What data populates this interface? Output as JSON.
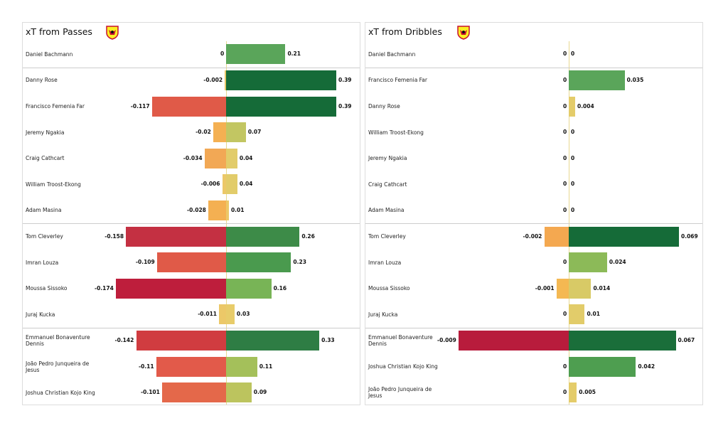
{
  "chart_data": [
    {
      "type": "diverging-bar",
      "title": "xT from Passes",
      "groups": [
        {
          "categories": [
            "Daniel Bachmann"
          ],
          "negative": {
            "values": [
              0
            ],
            "colors": [
              "#f0b050"
            ]
          },
          "positive": {
            "values": [
              0.21
            ],
            "colors": [
              "#5aa55a"
            ]
          }
        },
        {
          "categories": [
            "Danny Rose",
            "Francisco Femenia Far",
            "Jeremy Ngakia",
            "Craig Cathcart",
            "William Troost-Ekong",
            "Adam Masina"
          ],
          "negative": {
            "values": [
              -0.002,
              -0.117,
              -0.02,
              -0.034,
              -0.006,
              -0.028
            ],
            "colors": [
              "#e8c868",
              "#e05a48",
              "#f4b052",
              "#f2a855",
              "#ecc868",
              "#f4b052"
            ]
          },
          "positive": {
            "values": [
              0.39,
              0.39,
              0.07,
              0.04,
              0.04,
              0.01
            ],
            "colors": [
              "#156b38",
              "#156b38",
              "#c2c662",
              "#e2cc6a",
              "#e2cc6a",
              "#ecc868"
            ]
          }
        },
        {
          "categories": [
            "Tom Cleverley",
            "Imran Louza",
            "Moussa Sissoko",
            "Juraj Kucka"
          ],
          "negative": {
            "values": [
              -0.158,
              -0.109,
              -0.174,
              -0.011
            ],
            "colors": [
              "#c43042",
              "#e05a48",
              "#be1e3c",
              "#ecc868"
            ]
          },
          "positive": {
            "values": [
              0.26,
              0.23,
              0.16,
              0.03
            ],
            "colors": [
              "#3d8b48",
              "#4a9a4e",
              "#78b456",
              "#e8cc6a"
            ]
          }
        },
        {
          "categories": [
            "Emmanuel Bonaventure Dennis",
            "João Pedro Junqueira de Jesus",
            "Joshua Christian Kojo King"
          ],
          "negative": {
            "values": [
              -0.142,
              -0.11,
              -0.101
            ],
            "colors": [
              "#d03c40",
              "#e25a4a",
              "#e4684a"
            ]
          },
          "positive": {
            "values": [
              0.33,
              0.11,
              0.09
            ],
            "colors": [
              "#2e7d44",
              "#a4c05a",
              "#bcc45e"
            ]
          }
        }
      ]
    },
    {
      "type": "diverging-bar",
      "title": "xT from Dribbles",
      "groups": [
        {
          "categories": [
            "Daniel Bachmann"
          ],
          "negative": {
            "values": [
              0
            ],
            "colors": [
              "#e8cc6a"
            ]
          },
          "positive": {
            "values": [
              0
            ],
            "colors": [
              "#e8cc6a"
            ]
          }
        },
        {
          "categories": [
            "Francisco Femenia Far",
            "Danny Rose",
            "William Troost-Ekong",
            "Jeremy Ngakia",
            "Craig Cathcart",
            "Adam Masina"
          ],
          "negative": {
            "values": [
              0,
              0,
              0,
              0,
              0,
              0
            ],
            "colors": [
              "#e8cc6a",
              "#e8cc6a",
              "#e8cc6a",
              "#e8cc6a",
              "#e8cc6a",
              "#e8cc6a"
            ]
          },
          "positive": {
            "values": [
              0.035,
              0.004,
              0,
              0,
              0,
              0
            ],
            "colors": [
              "#5aa55a",
              "#e4cc6a",
              "#e8cc6a",
              "#e8cc6a",
              "#e8cc6a",
              "#e8cc6a"
            ]
          }
        },
        {
          "categories": [
            "Tom Cleverley",
            "Imran Louza",
            "Moussa Sissoko",
            "Juraj Kucka"
          ],
          "negative": {
            "values": [
              -0.002,
              0,
              -0.001,
              0
            ],
            "colors": [
              "#f4a850",
              "#e8cc6a",
              "#f4b852",
              "#e8cc6a"
            ]
          },
          "positive": {
            "values": [
              0.069,
              0.024,
              0.014,
              0.01
            ],
            "colors": [
              "#156b38",
              "#8cba58",
              "#d8ca66",
              "#e2cc6a"
            ]
          }
        },
        {
          "categories": [
            "Emmanuel Bonaventure Dennis",
            "Joshua Christian Kojo King",
            "João Pedro Junqueira de Jesus"
          ],
          "negative": {
            "values": [
              -0.009,
              0,
              0
            ],
            "colors": [
              "#b81c3c",
              "#e8cc6a",
              "#e8cc6a"
            ]
          },
          "positive": {
            "values": [
              0.067,
              0.042,
              0.005
            ],
            "colors": [
              "#1a6e3a",
              "#4e9e50",
              "#e4cc6a"
            ]
          }
        }
      ]
    }
  ]
}
